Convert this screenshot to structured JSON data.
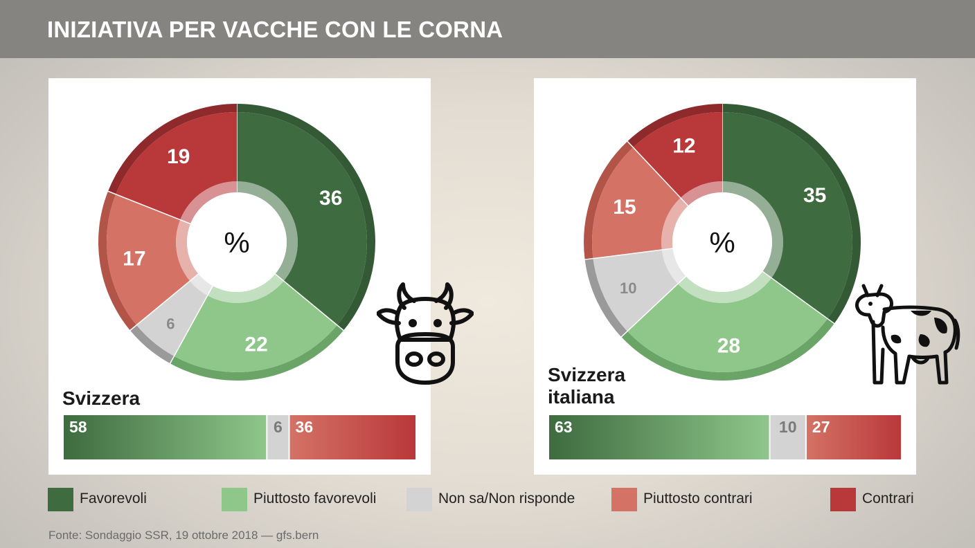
{
  "header": {
    "title": "INIZIATIVA PER VACCHE CON LE CORNA"
  },
  "colors": {
    "favorevoli": "#3e6b3f",
    "piuttosto_favorevoli": "#8fc68a",
    "non_sa": "#d3d3d3",
    "piuttosto_contrari": "#d47266",
    "contrari": "#b9383a"
  },
  "chart_data": [
    {
      "type": "pie",
      "title": "Svizzera",
      "center_label": "%",
      "slices": [
        {
          "label": "Favorevoli",
          "value": 36
        },
        {
          "label": "Piuttosto favorevoli",
          "value": 22
        },
        {
          "label": "Non sa/Non risponde",
          "value": 6
        },
        {
          "label": "Piuttosto contrari",
          "value": 17
        },
        {
          "label": "Contrari",
          "value": 19
        }
      ],
      "summary_bar": [
        {
          "label": "Favorevoli",
          "value": 58
        },
        {
          "label": "Non sa/Non risponde",
          "value": 6
        },
        {
          "label": "Contrari",
          "value": 36
        }
      ]
    },
    {
      "type": "pie",
      "title": "Svizzera italiana",
      "center_label": "%",
      "slices": [
        {
          "label": "Favorevoli",
          "value": 35
        },
        {
          "label": "Piuttosto favorevoli",
          "value": 28
        },
        {
          "label": "Non sa/Non risponde",
          "value": 10
        },
        {
          "label": "Piuttosto contrari",
          "value": 15
        },
        {
          "label": "Contrari",
          "value": 12
        }
      ],
      "summary_bar": [
        {
          "label": "Favorevoli",
          "value": 63
        },
        {
          "label": "Non sa/Non risponde",
          "value": 10
        },
        {
          "label": "Contrari",
          "value": 27
        }
      ]
    }
  ],
  "panels": [
    {
      "name_line1": "Svizzera",
      "name_line2": "",
      "icon": "cow-head-icon"
    },
    {
      "name_line1": "Svizzera",
      "name_line2": "italiana",
      "icon": "cow-icon"
    }
  ],
  "legend": [
    {
      "label": "Favorevoli",
      "color": "#3e6b3f"
    },
    {
      "label": "Piuttosto favorevoli",
      "color": "#8fc68a"
    },
    {
      "label": "Non sa/Non risponde",
      "color": "#d3d3d3"
    },
    {
      "label": "Piuttosto contrari",
      "color": "#d47266"
    },
    {
      "label": "Contrari",
      "color": "#b9383a"
    }
  ],
  "source": "Fonte: Sondaggio SSR, 19 ottobre 2018 — gfs.bern"
}
